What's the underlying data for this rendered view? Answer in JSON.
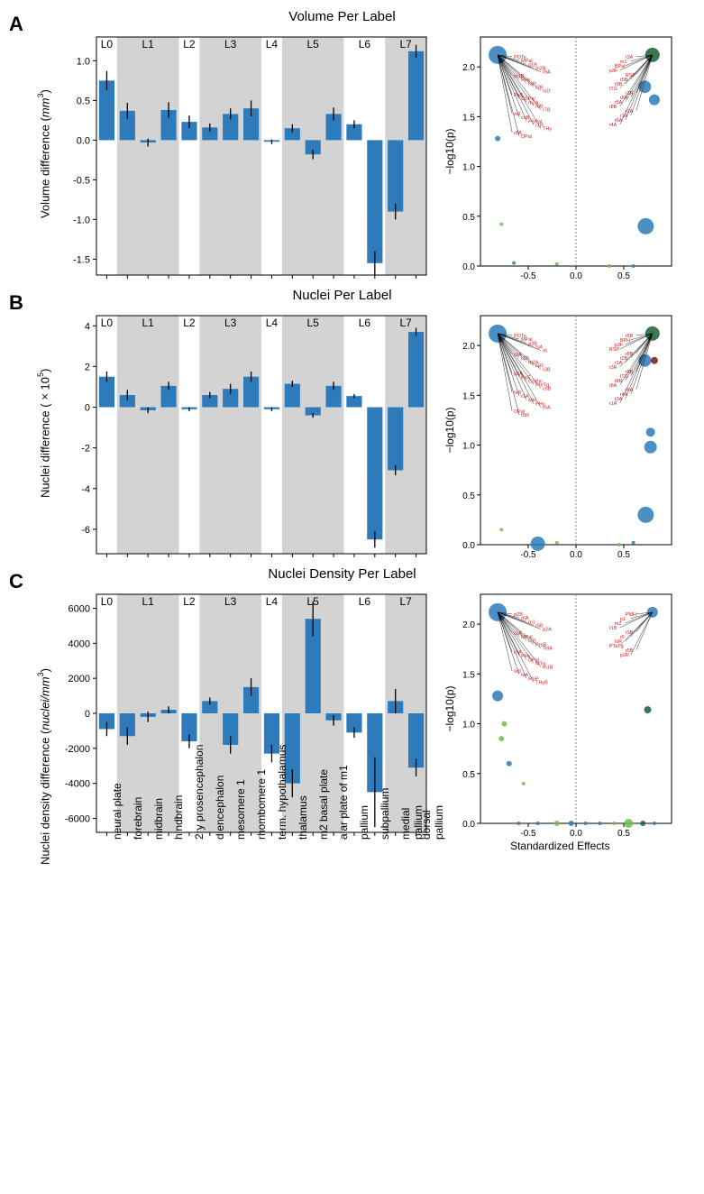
{
  "figure_width": 781,
  "figure_height": 1324,
  "bar_color": "#2d7bba",
  "background_color": "#ffffff",
  "band_color": "#d3d3d3",
  "error_color": "#000000",
  "label_font": "Arial",
  "categories": [
    "neural plate",
    "forebrain",
    "midbrain",
    "hindbrain",
    "2ry prosencephalon",
    "diencephalon",
    "mesomere 1",
    "rhombomere 1",
    "term. hypothalamus",
    "thalamus",
    "m2 basal plate",
    "alar plate of m1",
    "pallium",
    "subpallium",
    "medial pallium",
    "dorsal pallium"
  ],
  "level_labels": [
    "L0",
    "L1",
    "L2",
    "L3",
    "L4",
    "L5",
    "L6",
    "L7"
  ],
  "level_breaks": [
    0,
    1,
    4,
    5,
    8,
    9,
    12,
    14,
    16
  ],
  "panels": {
    "A": {
      "letter": "A",
      "title": "Volume Per Label",
      "ylabel_html": "Volume difference (<i>mm</i><sup>3</sup>)",
      "ylim": [
        -1.7,
        1.3
      ],
      "yticks": [
        -1.5,
        -1.0,
        -0.5,
        0.0,
        0.5,
        1.0
      ],
      "bars": [
        {
          "v": 0.75,
          "e": 0.12
        },
        {
          "v": 0.37,
          "e": 0.1
        },
        {
          "v": -0.03,
          "e": 0.05
        },
        {
          "v": 0.38,
          "e": 0.1
        },
        {
          "v": 0.23,
          "e": 0.08
        },
        {
          "v": 0.16,
          "e": 0.05
        },
        {
          "v": 0.33,
          "e": 0.07
        },
        {
          "v": 0.4,
          "e": 0.1
        },
        {
          "v": -0.02,
          "e": 0.03
        },
        {
          "v": 0.15,
          "e": 0.05
        },
        {
          "v": -0.18,
          "e": 0.06
        },
        {
          "v": 0.33,
          "e": 0.08
        },
        {
          "v": 0.2,
          "e": 0.05
        },
        {
          "v": -1.55,
          "e": 0.15
        },
        {
          "v": -0.9,
          "e": 0.1
        },
        {
          "v": 1.12,
          "e": 0.08
        }
      ],
      "volcano": {
        "xlim": [
          -1.0,
          1.0
        ],
        "ylim": [
          0,
          2.3
        ],
        "yticks": [
          0.0,
          0.5,
          1.0,
          1.5,
          2.0
        ],
        "xticks": [
          -0.5,
          0.0,
          0.5
        ],
        "ylabel": "−log10(p)",
        "points": [
          {
            "x": -0.82,
            "y": 2.12,
            "r": 10,
            "c": "#2d7bba"
          },
          {
            "x": 0.8,
            "y": 2.12,
            "r": 8,
            "c": "#1a6030"
          },
          {
            "x": 0.72,
            "y": 1.8,
            "r": 7,
            "c": "#2d7bba"
          },
          {
            "x": 0.82,
            "y": 1.67,
            "r": 6,
            "c": "#2d7bba"
          },
          {
            "x": -0.82,
            "y": 1.28,
            "r": 3,
            "c": "#2d7bba"
          },
          {
            "x": 0.73,
            "y": 0.4,
            "r": 9,
            "c": "#2d7bba"
          },
          {
            "x": -0.78,
            "y": 0.42,
            "r": 2,
            "c": "#6fbf4b"
          },
          {
            "x": -0.2,
            "y": 0.02,
            "r": 2,
            "c": "#6fbf4b"
          },
          {
            "x": 0.35,
            "y": 0.0,
            "r": 2,
            "c": "#6fbf4b"
          },
          {
            "x": -0.65,
            "y": 0.03,
            "r": 2,
            "c": "#2d7bba"
          },
          {
            "x": 0.6,
            "y": 0.0,
            "r": 2,
            "c": "#2d7bba"
          }
        ],
        "cluster_labels_left": [
          "POTe",
          "MPal",
          "p1B",
          "m2B",
          "r9A",
          "m1B",
          "PHy",
          "r3R",
          "r3B",
          "IsD",
          "PaS",
          "CSPal",
          "m2A",
          "r8B",
          "r7B",
          "m2",
          "csB",
          "PSPal",
          "r1R",
          "THy",
          "r8A",
          "DPal",
          "r5R",
          "HyA",
          "r5A",
          "MH",
          "IsR",
          "r4B",
          "RuS",
          "r1A",
          "r6B",
          "PMH",
          "r7R",
          "r7A",
          "r6R",
          "THyG",
          "r4R",
          "r2A",
          "r7B",
          "r9R",
          "r3B",
          "IsR"
        ],
        "cluster_labels_right": [
          "r3A",
          "m1",
          "BPal",
          "p3F",
          "RSP",
          "r5B",
          "r9B",
          "ITG",
          "r3R",
          "r8R",
          "r5A",
          "r8B",
          "r2A",
          "r1A",
          "r6A",
          "r4A",
          "r5A",
          "PHy",
          "r4B",
          "r6B",
          "r8B",
          "THyF",
          "r5M",
          "r1D"
        ]
      }
    },
    "B": {
      "letter": "B",
      "title": "Nuclei Per Label",
      "ylabel_html": "Nuclei difference (×10<sup>5</sup>)",
      "ylim": [
        -7.2,
        4.5
      ],
      "yticks": [
        -6,
        -4,
        -2,
        0,
        2,
        4
      ],
      "bars": [
        {
          "v": 1.5,
          "e": 0.25
        },
        {
          "v": 0.6,
          "e": 0.25
        },
        {
          "v": -0.15,
          "e": 0.15
        },
        {
          "v": 1.05,
          "e": 0.2
        },
        {
          "v": -0.1,
          "e": 0.1
        },
        {
          "v": 0.6,
          "e": 0.15
        },
        {
          "v": 0.9,
          "e": 0.25
        },
        {
          "v": 1.5,
          "e": 0.25
        },
        {
          "v": -0.1,
          "e": 0.1
        },
        {
          "v": 1.15,
          "e": 0.15
        },
        {
          "v": -0.4,
          "e": 0.12
        },
        {
          "v": 1.05,
          "e": 0.2
        },
        {
          "v": 0.55,
          "e": 0.1
        },
        {
          "v": -6.5,
          "e": 0.4
        },
        {
          "v": -3.1,
          "e": 0.25
        },
        {
          "v": 3.7,
          "e": 0.2
        }
      ],
      "volcano": {
        "xlim": [
          -1.0,
          1.0
        ],
        "ylim": [
          0,
          2.3
        ],
        "yticks": [
          0.0,
          0.5,
          1.0,
          1.5,
          2.0
        ],
        "xticks": [
          -0.5,
          0.0,
          0.5
        ],
        "ylabel": "−log10(p)",
        "points": [
          {
            "x": -0.82,
            "y": 2.12,
            "r": 10,
            "c": "#2d7bba"
          },
          {
            "x": 0.8,
            "y": 2.12,
            "r": 8,
            "c": "#1a6030"
          },
          {
            "x": 0.72,
            "y": 1.85,
            "r": 7,
            "c": "#2d7bba"
          },
          {
            "x": 0.82,
            "y": 1.85,
            "r": 4,
            "c": "#6b2020"
          },
          {
            "x": 0.78,
            "y": 1.13,
            "r": 5,
            "c": "#2d7bba"
          },
          {
            "x": 0.78,
            "y": 0.98,
            "r": 7,
            "c": "#2d7bba"
          },
          {
            "x": 0.73,
            "y": 0.3,
            "r": 9,
            "c": "#2d7bba"
          },
          {
            "x": -0.4,
            "y": 0.01,
            "r": 8,
            "c": "#2d7bba"
          },
          {
            "x": -0.78,
            "y": 0.15,
            "r": 2,
            "c": "#6fbf4b"
          },
          {
            "x": -0.2,
            "y": 0.02,
            "r": 2,
            "c": "#6fbf4b"
          },
          {
            "x": 0.45,
            "y": 0.0,
            "r": 2,
            "c": "#6fbf4b"
          },
          {
            "x": 0.6,
            "y": 0.02,
            "r": 2,
            "c": "#2d7bba"
          }
        ],
        "cluster_labels_left": [
          "POTe",
          "MPal",
          "p3B",
          "IsA",
          "r6",
          "r3A",
          "r1R",
          "m2A",
          "r4R",
          "r3B",
          "p2A",
          "PaS",
          "CSPal",
          "PreTg",
          "csB",
          "IsR",
          "r1A",
          "MH",
          "PHy",
          "r5A",
          "DPal",
          "r5R",
          "RSP",
          "r2A",
          "r6A",
          "r4R",
          "HyA",
          "r7R",
          "r7B",
          "r9R",
          "r3B",
          "IsR"
        ],
        "cluster_labels_right": [
          "r5B",
          "BPH",
          "p3F",
          "RSP",
          "r8B",
          "r2B",
          "r1A",
          "r3R",
          "r9B",
          "ITG",
          "r8R",
          "r8A",
          "r6A",
          "r4A",
          "r3A",
          "r1A",
          "TelA",
          "r1D"
        ]
      }
    },
    "C": {
      "letter": "C",
      "title": "Nuclei Density Per Label",
      "ylabel_html": "Nuclei density difference (<i>nuclei/mm</i><sup>3</sup>)",
      "ylim": [
        -6800,
        6800
      ],
      "yticks": [
        -6000,
        -4000,
        -2000,
        0,
        2000,
        4000,
        6000
      ],
      "bars": [
        {
          "v": -900,
          "e": 400
        },
        {
          "v": -1300,
          "e": 500
        },
        {
          "v": -200,
          "e": 300
        },
        {
          "v": 200,
          "e": 200
        },
        {
          "v": -1600,
          "e": 400
        },
        {
          "v": 700,
          "e": 200
        },
        {
          "v": -1800,
          "e": 500
        },
        {
          "v": 1500,
          "e": 500
        },
        {
          "v": -2300,
          "e": 500
        },
        {
          "v": -4000,
          "e": 800
        },
        {
          "v": 5400,
          "e": 1000
        },
        {
          "v": -400,
          "e": 300
        },
        {
          "v": -1100,
          "e": 300
        },
        {
          "v": -4500,
          "e": 2000
        },
        {
          "v": 700,
          "e": 700
        },
        {
          "v": -3100,
          "e": 500
        }
      ],
      "volcano": {
        "xlim": [
          -1.0,
          1.0
        ],
        "ylim": [
          0,
          2.3
        ],
        "yticks": [
          0.0,
          0.5,
          1.0,
          1.5,
          2.0
        ],
        "xticks": [
          -0.5,
          0.0,
          0.5
        ],
        "ylabel": "−log10(p)",
        "xlabel": "Standardized Effects",
        "points": [
          {
            "x": -0.82,
            "y": 2.12,
            "r": 10,
            "c": "#2d7bba"
          },
          {
            "x": 0.8,
            "y": 2.12,
            "r": 6,
            "c": "#2d7bba"
          },
          {
            "x": -0.82,
            "y": 1.28,
            "r": 6,
            "c": "#2d7bba"
          },
          {
            "x": 0.75,
            "y": 1.14,
            "r": 4,
            "c": "#1a6030"
          },
          {
            "x": -0.75,
            "y": 1.0,
            "r": 3,
            "c": "#6fbf4b"
          },
          {
            "x": -0.78,
            "y": 0.85,
            "r": 3,
            "c": "#6fbf4b"
          },
          {
            "x": -0.7,
            "y": 0.6,
            "r": 3,
            "c": "#2d7bba"
          },
          {
            "x": -0.55,
            "y": 0.4,
            "r": 2,
            "c": "#6fbf4b"
          },
          {
            "x": -0.6,
            "y": 0.0,
            "r": 2,
            "c": "#2d7bba"
          },
          {
            "x": -0.4,
            "y": 0.0,
            "r": 2,
            "c": "#2d7bba"
          },
          {
            "x": -0.2,
            "y": 0.0,
            "r": 3,
            "c": "#6fbf4b"
          },
          {
            "x": -0.05,
            "y": 0.0,
            "r": 3,
            "c": "#2d7bba"
          },
          {
            "x": 0.1,
            "y": 0.0,
            "r": 2,
            "c": "#2d7bba"
          },
          {
            "x": 0.25,
            "y": 0.0,
            "r": 2,
            "c": "#2d7bba"
          },
          {
            "x": 0.4,
            "y": 0.0,
            "r": 2,
            "c": "#6fbf4b"
          },
          {
            "x": 0.55,
            "y": 0.0,
            "r": 5,
            "c": "#6fbf4b"
          },
          {
            "x": 0.7,
            "y": 0.0,
            "r": 3,
            "c": "#1a6030"
          },
          {
            "x": 0.82,
            "y": 0.0,
            "r": 2,
            "c": "#2d7bba"
          }
        ],
        "cluster_labels_left": [
          "p2B",
          "r6A",
          "m1",
          "r5B",
          "p2A",
          "r2A",
          "MPal",
          "r7B",
          "PrsB",
          "TelA",
          "r7A",
          "PHy",
          "DPal",
          "MTg",
          "m1B",
          "IsD",
          "IsA",
          "RSP",
          "THyB"
        ],
        "cluster_labels_right": [
          "PMH",
          "p1",
          "m2",
          "r1B",
          "r3B",
          "r6",
          "IsR",
          "PTaTg",
          "r5B",
          "p2R"
        ]
      }
    }
  }
}
